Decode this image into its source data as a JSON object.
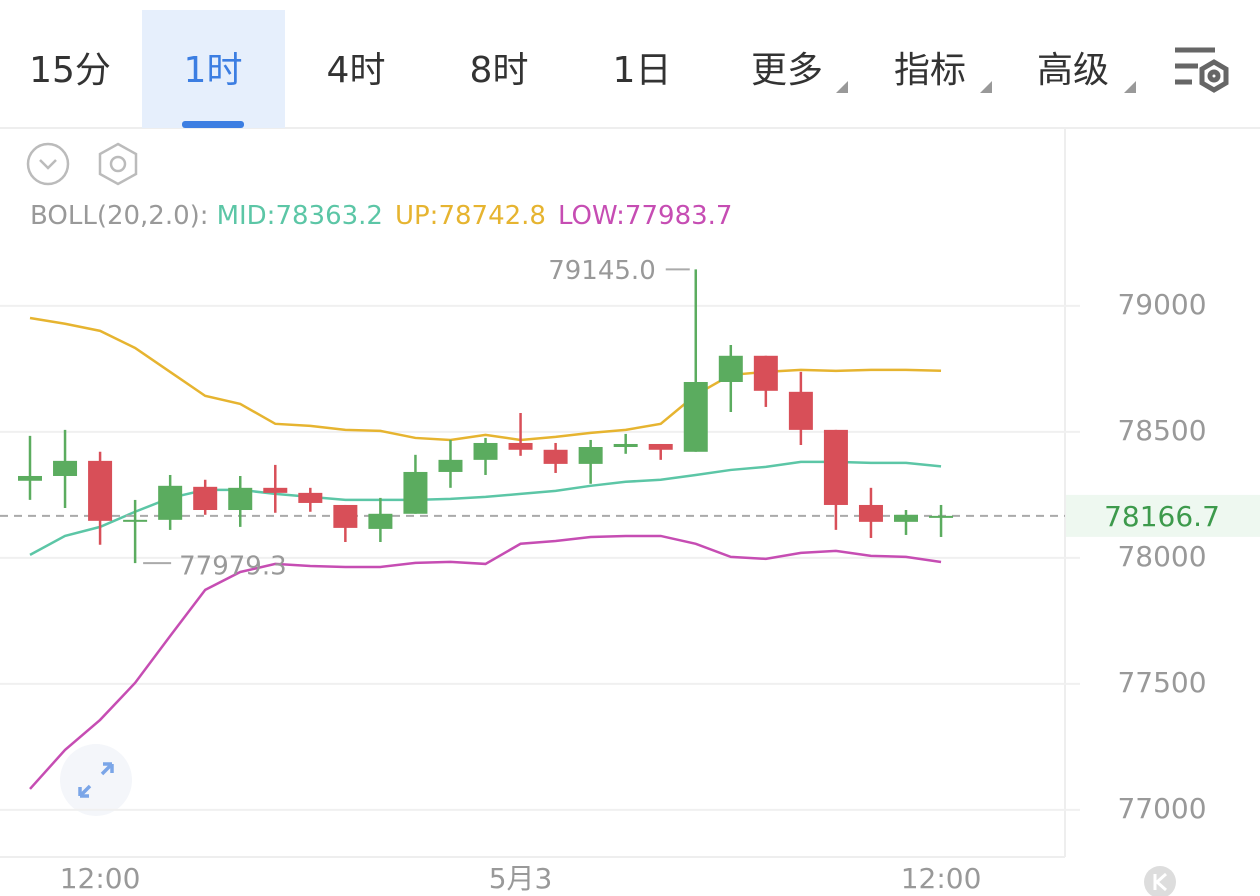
{
  "tabs": [
    "15分",
    "1时",
    "4时",
    "8时",
    "1日",
    "更多",
    "指标",
    "高级"
  ],
  "active_tab": 1,
  "chart_data": {
    "type": "candlestick",
    "indicator": "BOLL(20,2.0):",
    "categories": [
      null,
      null,
      "12:00",
      null,
      null,
      null,
      null,
      null,
      null,
      null,
      null,
      null,
      null,
      null,
      "5月3",
      null,
      null,
      null,
      null,
      null,
      null,
      null,
      null,
      null,
      null,
      null,
      "12:00"
    ],
    "open": [
      78306,
      78325,
      78385,
      78147,
      78151,
      78282,
      78190,
      78278,
      78258,
      78210,
      78115,
      78175,
      78341,
      78389,
      78456,
      78429,
      78373,
      78440,
      78452,
      78421,
      78698,
      78802,
      78659,
      78508,
      78210,
      78143,
      78160
    ],
    "high": [
      78484,
      78508,
      78421,
      78230,
      78329,
      78310,
      78325,
      78369,
      78278,
      78210,
      78238,
      78409,
      78468,
      78476,
      78575,
      78456,
      78468,
      78492,
      78452,
      79145.0,
      78845,
      78802,
      78738,
      78508,
      78278,
      78190,
      78210
    ],
    "low": [
      78230,
      78198,
      78052,
      77979.3,
      78111,
      78171,
      78123,
      78179,
      78183,
      78063,
      78063,
      78175,
      78278,
      78329,
      78405,
      78337,
      78294,
      78413,
      78389,
      78421,
      78579,
      78599,
      78448,
      78111,
      78079,
      78091,
      78083
    ],
    "close": [
      78325,
      78385,
      78147,
      78151,
      78286,
      78190,
      78278,
      78258,
      78218,
      78119,
      78175,
      78341,
      78389,
      78456,
      78429,
      78373,
      78440,
      78452,
      78429,
      78698,
      78802,
      78663,
      78508,
      78210,
      78143,
      78171,
      78166.7
    ],
    "up_color": "#5bac5f",
    "down_color": "#d84f58",
    "series": [
      {
        "name": "MID:78363.2",
        "color": "#5cc6a6",
        "values": [
          78012,
          78087,
          78123,
          78183,
          78238,
          78270,
          78270,
          78254,
          78242,
          78230,
          78230,
          78230,
          78234,
          78242,
          78254,
          78266,
          78286,
          78302,
          78310,
          78329,
          78349,
          78361,
          78381,
          78381,
          78377,
          78377,
          78363.2
        ]
      },
      {
        "name": "UP:78742.8",
        "color": "#e6b430",
        "values": [
          78952,
          78929,
          78901,
          78833,
          78738,
          78643,
          78611,
          78532,
          78524,
          78508,
          78504,
          78476,
          78468,
          78488,
          78468,
          78480,
          78496,
          78508,
          78532,
          78647,
          78726,
          78738,
          78746,
          78742,
          78746,
          78746,
          78742.8
        ]
      },
      {
        "name": "LOW:77983.7",
        "color": "#c64db3",
        "values": [
          77083,
          77238,
          77357,
          77504,
          77690,
          77873,
          77944,
          77976,
          77968,
          77964,
          77964,
          77980,
          77984,
          77976,
          78056,
          78067,
          78083,
          78087,
          78087,
          78056,
          78004,
          77996,
          78020,
          78028,
          78008,
          78004,
          77983.7
        ]
      }
    ],
    "high_label": "79145.0",
    "low_label": "77979.3",
    "last": {
      "value": 78166.7,
      "label": "78166.7"
    },
    "ylim": [
      76813,
      79698
    ],
    "yticks": [
      77000,
      77500,
      78000,
      78500,
      79000
    ],
    "grid": true
  }
}
